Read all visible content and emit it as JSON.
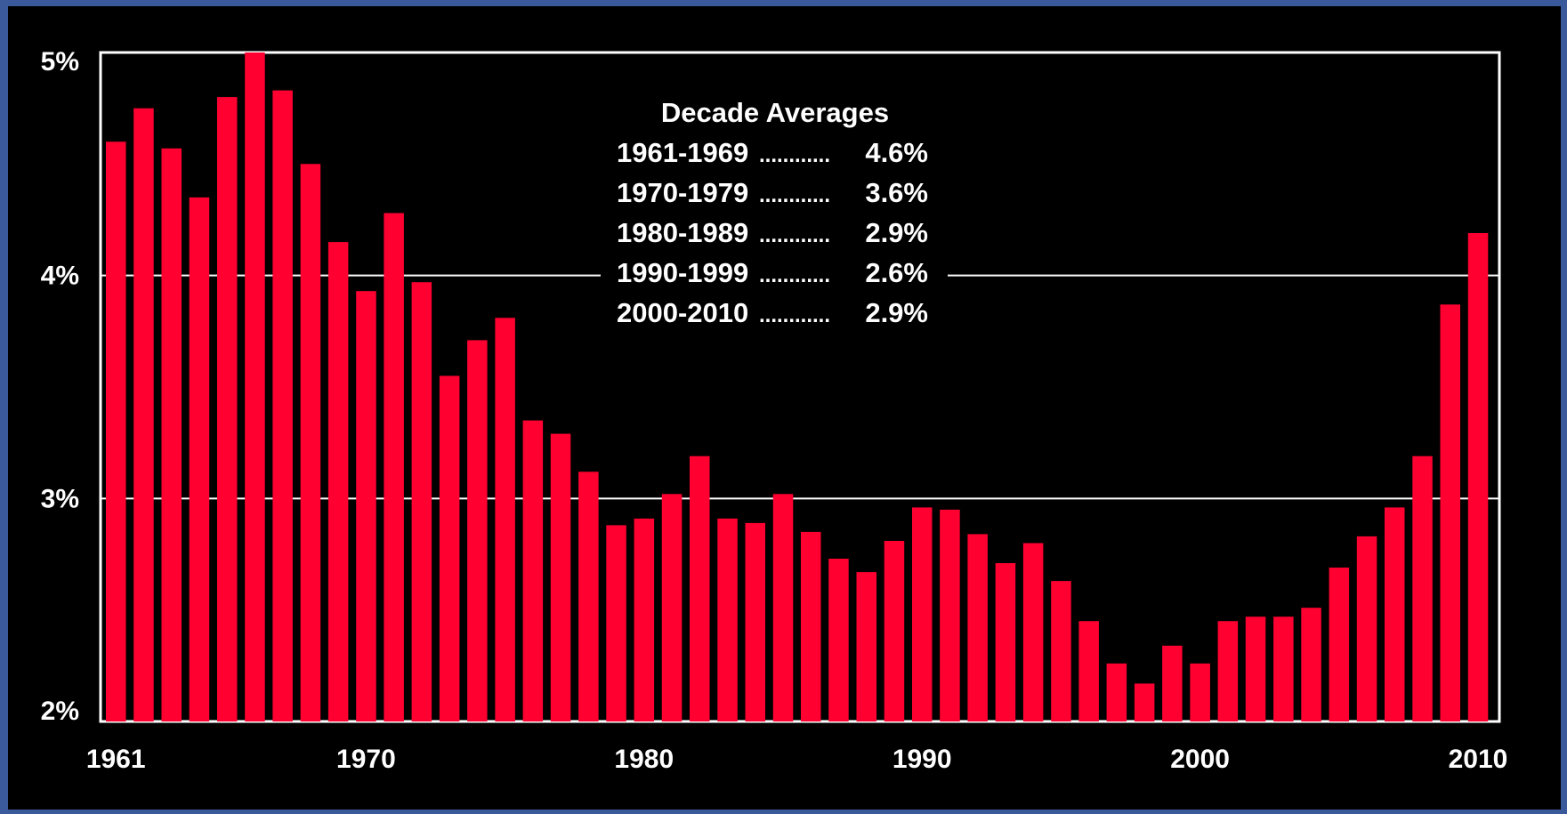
{
  "chart_data": {
    "type": "bar",
    "title": "",
    "xlabel": "",
    "ylabel": "",
    "ylim": [
      2,
      5
    ],
    "yticks": [
      {
        "value": 2,
        "label": "2%"
      },
      {
        "value": 3,
        "label": "3%"
      },
      {
        "value": 4,
        "label": "4%"
      },
      {
        "value": 5,
        "label": "5%"
      }
    ],
    "xticks": [
      "1961",
      "1970",
      "1980",
      "1990",
      "2000",
      "2010"
    ],
    "grid": "horizontal",
    "bar_color": "#ff0030",
    "background": "#000000",
    "categories": [
      1961,
      1962,
      1963,
      1964,
      1965,
      1966,
      1967,
      1968,
      1969,
      1970,
      1971,
      1972,
      1973,
      1974,
      1975,
      1976,
      1977,
      1978,
      1979,
      1980,
      1981,
      1982,
      1983,
      1984,
      1985,
      1986,
      1987,
      1988,
      1989,
      1990,
      1991,
      1992,
      1993,
      1994,
      1995,
      1996,
      1997,
      1998,
      1999,
      2000,
      2001,
      2002,
      2003,
      2004,
      2005,
      2006,
      2007,
      2008,
      2009,
      2010
    ],
    "values": [
      4.6,
      4.75,
      4.57,
      4.35,
      4.8,
      5.0,
      4.83,
      4.5,
      4.15,
      3.93,
      4.28,
      3.97,
      3.55,
      3.71,
      3.81,
      3.35,
      3.29,
      3.12,
      2.88,
      2.91,
      3.02,
      3.19,
      2.91,
      2.89,
      3.02,
      2.85,
      2.73,
      2.67,
      2.81,
      2.96,
      2.95,
      2.84,
      2.71,
      2.8,
      2.63,
      2.45,
      2.26,
      2.17,
      2.34,
      2.26,
      2.45,
      2.47,
      2.47,
      2.51,
      2.69,
      2.83,
      2.96,
      3.19,
      3.87,
      4.19
    ],
    "annotation": {
      "heading": "Decade Averages",
      "rows": [
        {
          "period": "1961-1969",
          "dots": "............",
          "value": "4.6%"
        },
        {
          "period": "1970-1979",
          "dots": "............",
          "value": "3.6%"
        },
        {
          "period": "1980-1989",
          "dots": "............",
          "value": "2.9%"
        },
        {
          "period": "1990-1999",
          "dots": "............",
          "value": "2.6%"
        },
        {
          "period": "2000-2010",
          "dots": "............",
          "value": "2.9%"
        }
      ]
    }
  }
}
